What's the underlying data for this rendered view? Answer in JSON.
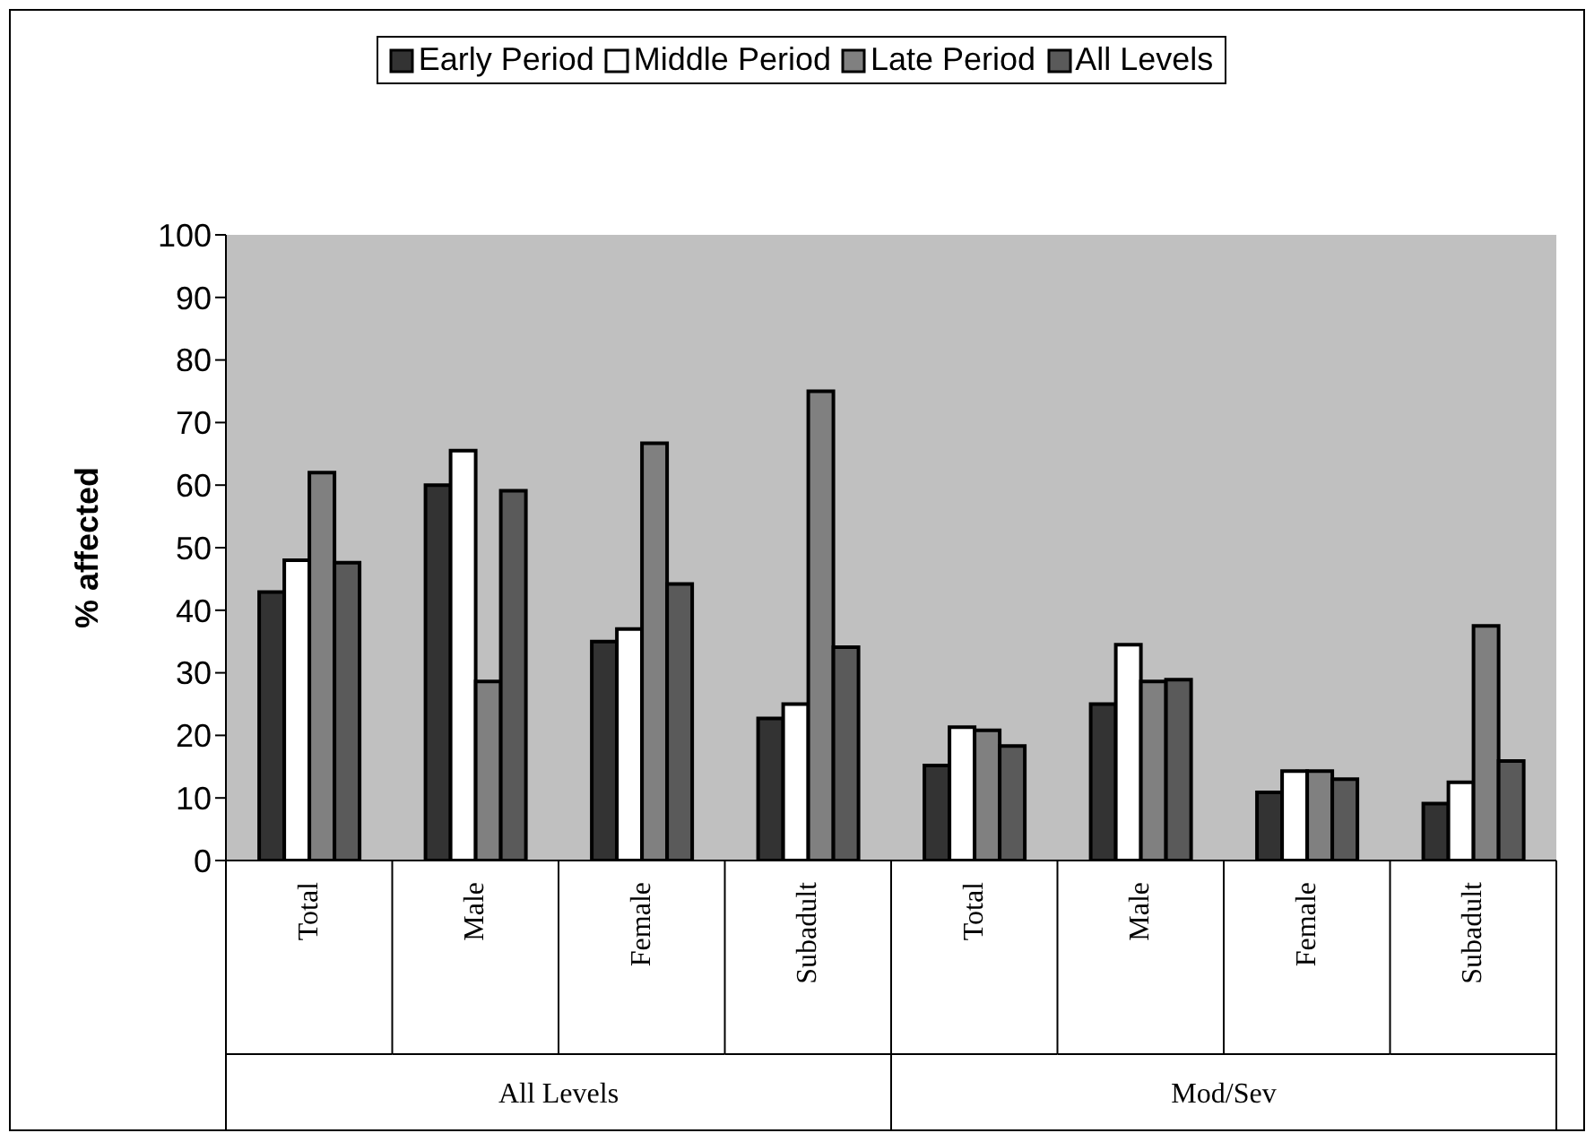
{
  "chart_data": {
    "type": "bar",
    "ylabel": "% affected",
    "categories": [
      "Total",
      "Male",
      "Female",
      "Subadult",
      "Total",
      "Male",
      "Female",
      "Subadult"
    ],
    "annotations": [
      "All Levels",
      "Mod/Sev"
    ],
    "series": [
      {
        "name": "Early Period",
        "color": "#333333",
        "values": [
          42.9,
          60,
          35,
          22.7,
          15.2,
          25,
          10.9,
          9.1
        ]
      },
      {
        "name": "Middle Period",
        "color": "#ffffff",
        "values": [
          48,
          65.5,
          37,
          25,
          21.3,
          34.5,
          14.3,
          12.5
        ]
      },
      {
        "name": "Late Period",
        "color": "#808080",
        "values": [
          62,
          28.6,
          66.7,
          75,
          20.8,
          28.6,
          14.3,
          37.5
        ]
      },
      {
        "name": "All Levels",
        "color": "#5a5a5a",
        "values": [
          47.6,
          59.1,
          44.2,
          34.1,
          18.3,
          28.9,
          13,
          15.9
        ]
      }
    ],
    "ylim": [
      0,
      100
    ],
    "yticks": [
      0,
      10,
      20,
      30,
      40,
      50,
      60,
      70,
      80,
      90,
      100
    ],
    "grid": false,
    "legend": "top"
  }
}
